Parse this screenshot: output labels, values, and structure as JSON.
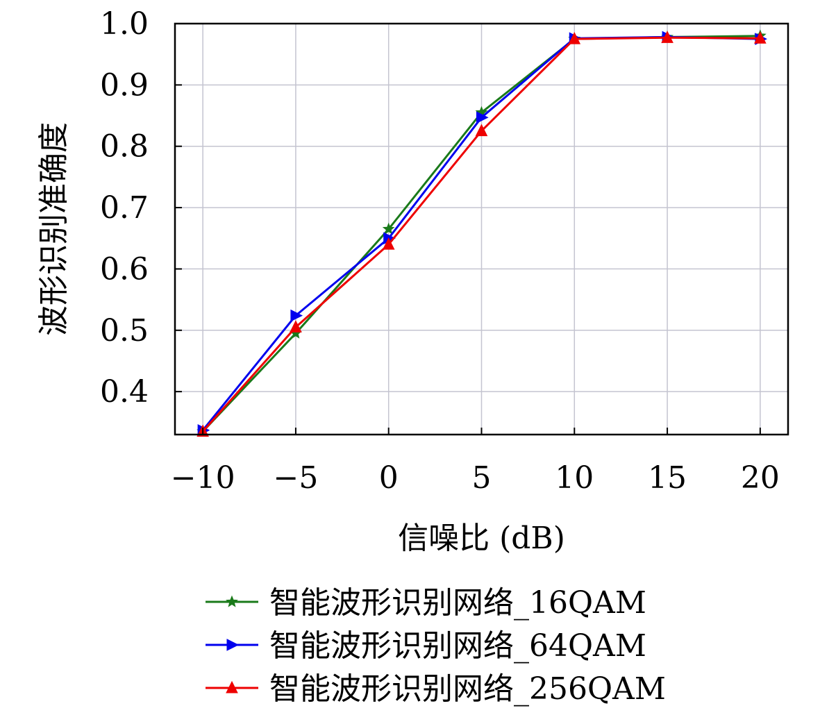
{
  "chart_data": {
    "type": "line",
    "title": "",
    "xlabel": "信噪比 (dB)",
    "ylabel": "波形识别准确度",
    "x": [
      -10,
      -5,
      0,
      5,
      10,
      15,
      20
    ],
    "x_tick_labels": [
      "−10",
      "−5",
      "0",
      "5",
      "10",
      "15",
      "20"
    ],
    "y_ticks": [
      0.4,
      0.5,
      0.6,
      0.7,
      0.8,
      0.9,
      1.0
    ],
    "y_tick_labels": [
      "0.4",
      "0.5",
      "0.6",
      "0.7",
      "0.8",
      "0.9",
      "1.0"
    ],
    "xlim": [
      -11.5,
      21.5
    ],
    "ylim": [
      0.33,
      1.0
    ],
    "grid": true,
    "legend_position": "bottom",
    "series": [
      {
        "name": "智能波形识别网络_16QAM",
        "color": "#1a7a1a",
        "marker": "star",
        "values": [
          0.335,
          0.495,
          0.665,
          0.855,
          0.975,
          0.978,
          0.98
        ]
      },
      {
        "name": "智能波形识别网络_64QAM",
        "color": "#0000ee",
        "marker": "triangle-right",
        "values": [
          0.337,
          0.524,
          0.65,
          0.847,
          0.976,
          0.978,
          0.975
        ]
      },
      {
        "name": "智能波形识别网络_256QAM",
        "color": "#ee0000",
        "marker": "triangle-up",
        "values": [
          0.335,
          0.505,
          0.64,
          0.825,
          0.975,
          0.977,
          0.976
        ]
      }
    ]
  }
}
